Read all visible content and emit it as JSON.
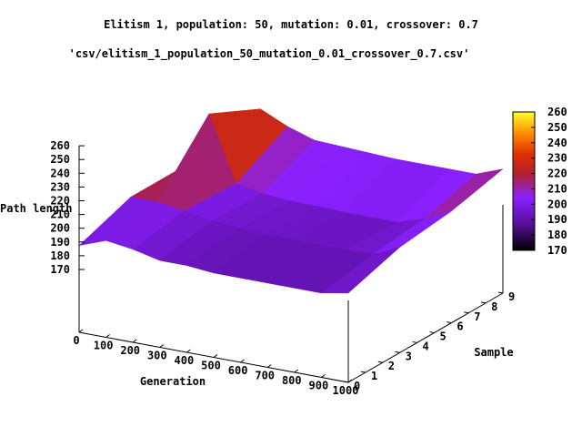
{
  "chart_data": {
    "type": "surface3d",
    "title": "Elitism 1, population: 50, mutation: 0.01, crossover: 0.7",
    "subtitle": "'csv/elitism_1_population_50_mutation_0.01_crossover_0.7.csv'",
    "xlabel": "Generation",
    "ylabel": "Sample",
    "zlabel": "Path length",
    "x_ticks": [
      "0",
      "100",
      "200",
      "300",
      "400",
      "500",
      "600",
      "700",
      "800",
      "900",
      "1000"
    ],
    "y_ticks": [
      "0",
      "1",
      "2",
      "3",
      "4",
      "5",
      "6",
      "7",
      "8",
      "9"
    ],
    "z_ticks": [
      "170",
      "180",
      "190",
      "200",
      "210",
      "220",
      "230",
      "240",
      "250",
      "260"
    ],
    "colorbar_ticks": [
      "170",
      "180",
      "190",
      "200",
      "210",
      "220",
      "230",
      "240",
      "250",
      "260"
    ],
    "xlim": [
      0,
      1000
    ],
    "ylim": [
      0,
      9
    ],
    "zlim": [
      170,
      260
    ],
    "colorbar_range": [
      170,
      260
    ],
    "surface": {
      "x": [
        0,
        100,
        200,
        300,
        400,
        500,
        600,
        700,
        800,
        900,
        1000
      ],
      "samples": [
        {
          "name": "0",
          "z": [
            190,
            198,
            195,
            190,
            190,
            188,
            188,
            188,
            188,
            188,
            192
          ]
        },
        {
          "name": "3",
          "z": [
            205,
            205,
            202,
            198,
            196,
            195,
            195,
            195,
            195,
            195,
            205
          ]
        },
        {
          "name": "6",
          "z": [
            205,
            252,
            200,
            196,
            194,
            194,
            193,
            193,
            193,
            200,
            210
          ]
        },
        {
          "name": "9",
          "z": [
            210,
            232,
            222,
            215,
            214,
            213,
            212,
            212,
            212,
            212,
            220
          ]
        }
      ]
    }
  }
}
